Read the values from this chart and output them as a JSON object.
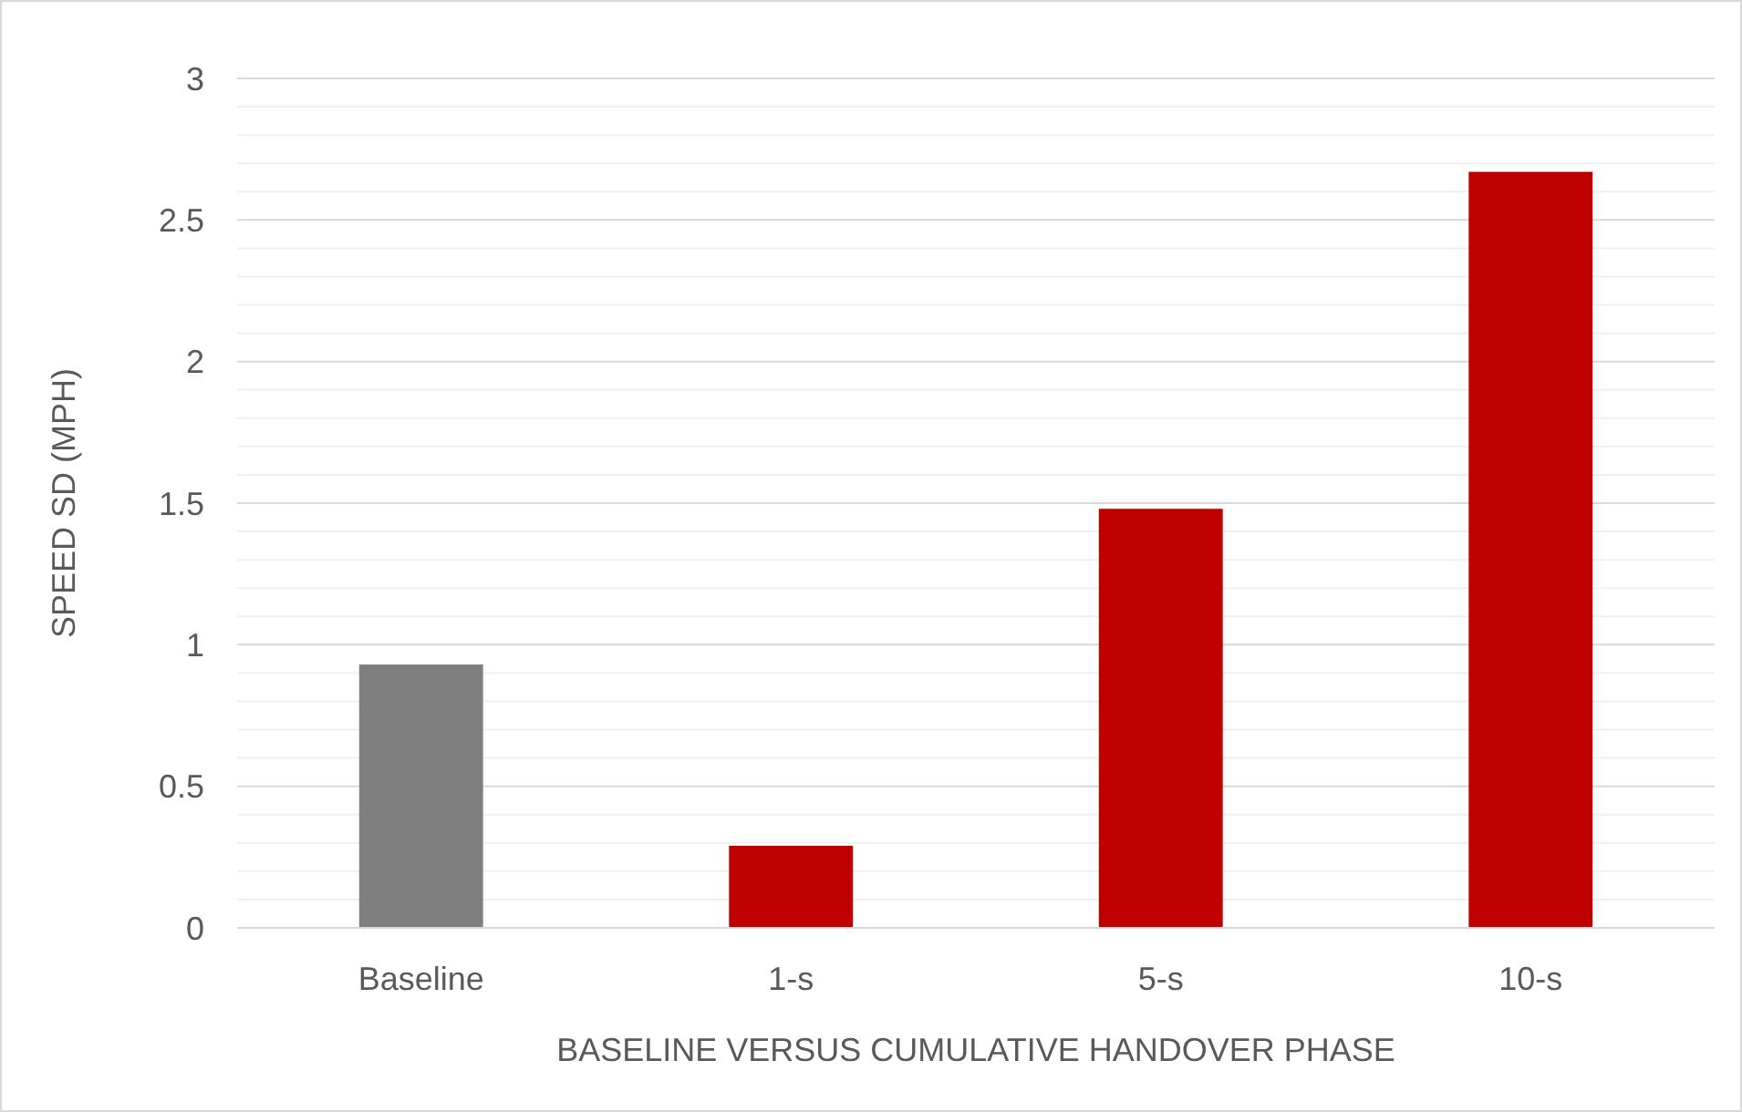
{
  "chart_data": {
    "type": "bar",
    "categories": [
      "Baseline",
      "1-s",
      "5-s",
      "10-s"
    ],
    "values": [
      0.93,
      0.29,
      1.48,
      2.67
    ],
    "colors": [
      "#7f7f7f",
      "#c00000",
      "#c00000",
      "#c00000"
    ],
    "xlabel": "BASELINE VERSUS CUMULATIVE HANDOVER PHASE",
    "ylabel": "SPEED SD (MPH)",
    "ylim": [
      0,
      3
    ],
    "yticks": [
      0,
      {
        "value": 0.1,
        "label": null
      },
      {
        "value": 0.2,
        "label": null
      },
      {
        "value": 0.3,
        "label": null
      },
      {
        "value": 0.4,
        "label": null
      },
      0.5,
      {
        "value": 0.6,
        "label": null
      },
      {
        "value": 0.7,
        "label": null
      },
      {
        "value": 0.8,
        "label": null
      },
      {
        "value": 0.9,
        "label": null
      },
      1,
      {
        "value": 1.1,
        "label": null
      },
      {
        "value": 1.2,
        "label": null
      },
      {
        "value": 1.3,
        "label": null
      },
      {
        "value": 1.4,
        "label": null
      },
      1.5,
      {
        "value": 1.6,
        "label": null
      },
      {
        "value": 1.7,
        "label": null
      },
      {
        "value": 1.8,
        "label": null
      },
      {
        "value": 1.9,
        "label": null
      },
      2,
      {
        "value": 2.1,
        "label": null
      },
      {
        "value": 2.2,
        "label": null
      },
      {
        "value": 2.3,
        "label": null
      },
      {
        "value": 2.4,
        "label": null
      },
      2.5,
      {
        "value": 2.6,
        "label": null
      },
      {
        "value": 2.7,
        "label": null
      },
      {
        "value": 2.8,
        "label": null
      },
      {
        "value": 2.9,
        "label": null
      },
      3
    ],
    "grid": "y"
  }
}
